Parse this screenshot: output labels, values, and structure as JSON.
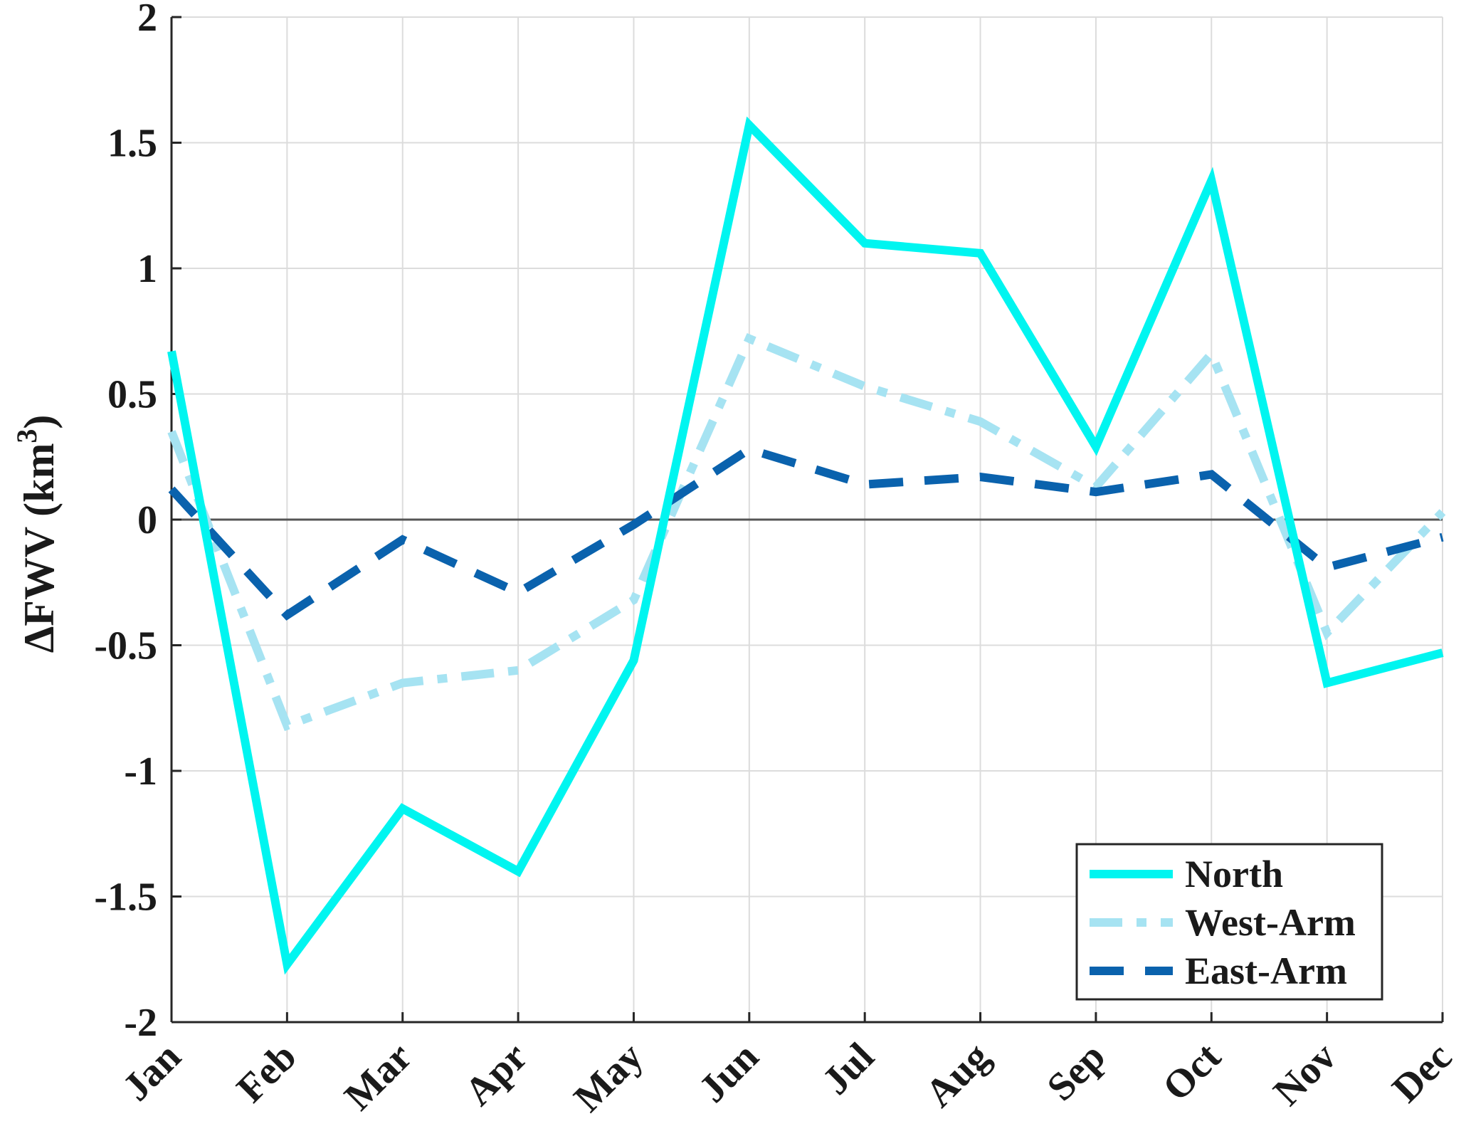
{
  "chart_data": {
    "type": "line",
    "title": "",
    "xlabel": "",
    "ylabel": "ΔFWV (km",
    "ylabel_superscript": "3",
    "ylabel_close": ")",
    "categories": [
      "Jan",
      "Feb",
      "Mar",
      "Apr",
      "May",
      "Jun",
      "Jul",
      "Aug",
      "Sep",
      "Oct",
      "Nov",
      "Dec"
    ],
    "ylim": [
      -2,
      2
    ],
    "yticks": [
      -2,
      -1.5,
      -1,
      -0.5,
      0,
      0.5,
      1,
      1.5,
      2
    ],
    "ytick_labels": [
      "-2",
      "-1.5",
      "-1",
      "-0.5",
      "0",
      "0.5",
      "1",
      "1.5",
      "2"
    ],
    "grid": true,
    "zero_line": true,
    "legend_position": "bottom-right",
    "series": [
      {
        "name": "North",
        "color": "#00f5f0",
        "style": "solid",
        "values": [
          0.67,
          -1.77,
          -1.15,
          -1.4,
          -0.56,
          1.57,
          1.1,
          1.06,
          0.29,
          1.35,
          -0.65,
          -0.53
        ]
      },
      {
        "name": "West-Arm",
        "color": "#a6e3f2",
        "style": "dash-dot",
        "values": [
          0.35,
          -0.82,
          -0.65,
          -0.6,
          -0.32,
          0.72,
          0.53,
          0.39,
          0.13,
          0.66,
          -0.45,
          0.03
        ]
      },
      {
        "name": "East-Arm",
        "color": "#0a62ad",
        "style": "dashed",
        "values": [
          0.12,
          -0.38,
          -0.08,
          -0.29,
          -0.02,
          0.28,
          0.14,
          0.17,
          0.11,
          0.18,
          -0.19,
          -0.07
        ]
      }
    ]
  }
}
